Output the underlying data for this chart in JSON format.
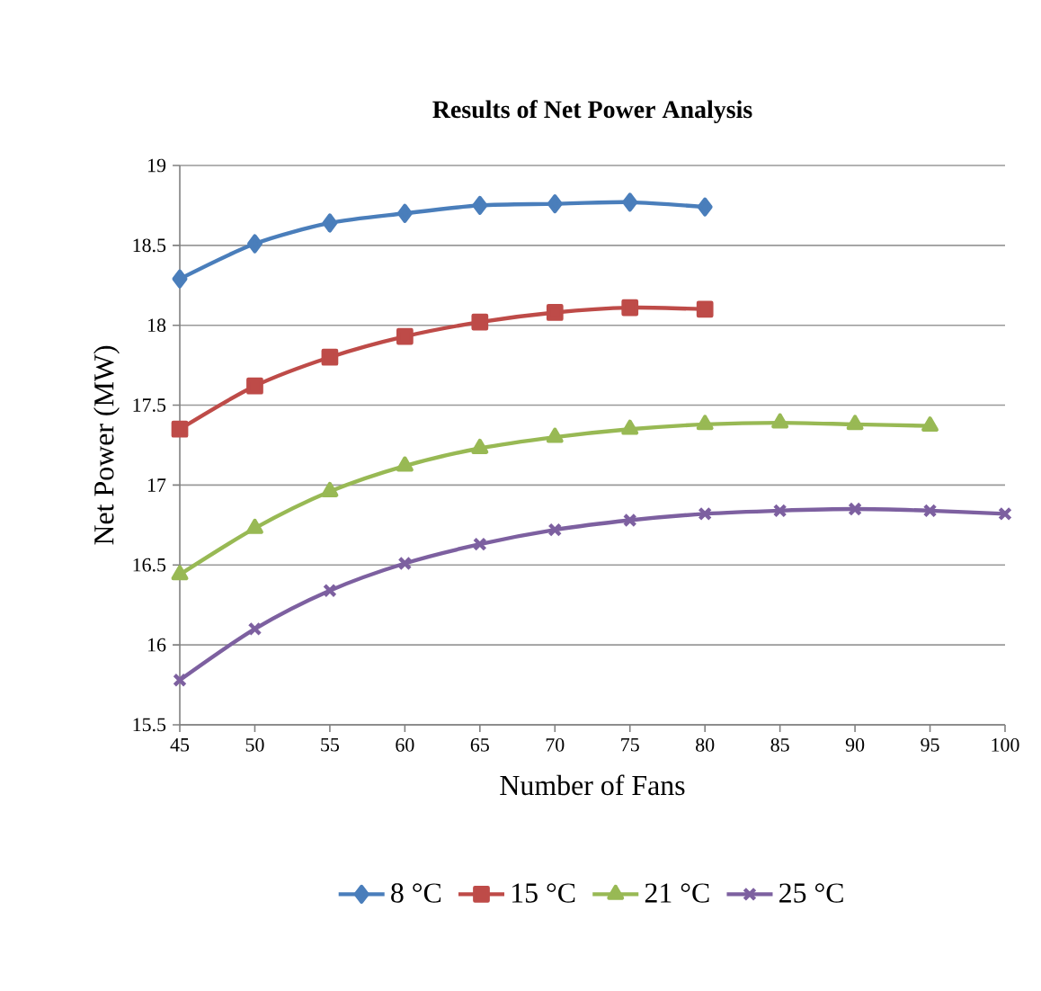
{
  "chart_data": {
    "type": "line",
    "title": "Results of Net Power Analysis",
    "xlabel": "Number of Fans",
    "ylabel": "Net Power (MW)",
    "xlim": [
      45,
      100
    ],
    "xticks": [
      45,
      50,
      55,
      60,
      65,
      70,
      75,
      80,
      85,
      90,
      95,
      100
    ],
    "ylim": [
      15.5,
      19
    ],
    "yticks": [
      15.5,
      16,
      16.5,
      17,
      17.5,
      18,
      18.5,
      19
    ],
    "grid": "y",
    "legend": "bottom",
    "series": [
      {
        "name": "8 °C",
        "color": "#4a7ebb",
        "marker": "diamond",
        "x": [
          45,
          50,
          55,
          60,
          65,
          70,
          75,
          80
        ],
        "values": [
          18.29,
          18.51,
          18.64,
          18.7,
          18.75,
          18.76,
          18.77,
          18.74
        ]
      },
      {
        "name": "15 °C",
        "color": "#be4b48",
        "marker": "square",
        "x": [
          45,
          50,
          55,
          60,
          65,
          70,
          75,
          80
        ],
        "values": [
          17.35,
          17.62,
          17.8,
          17.93,
          18.02,
          18.08,
          18.11,
          18.1
        ]
      },
      {
        "name": "21 °C",
        "color": "#98b954",
        "marker": "triangle",
        "x": [
          45,
          50,
          55,
          60,
          65,
          70,
          75,
          80,
          85,
          90,
          95
        ],
        "values": [
          16.44,
          16.73,
          16.96,
          17.12,
          17.23,
          17.3,
          17.35,
          17.38,
          17.39,
          17.38,
          17.37
        ]
      },
      {
        "name": "25 °C",
        "color": "#7d60a0",
        "marker": "cross",
        "x": [
          45,
          50,
          55,
          60,
          65,
          70,
          75,
          80,
          85,
          90,
          95,
          100
        ],
        "values": [
          15.78,
          16.1,
          16.34,
          16.51,
          16.63,
          16.72,
          16.78,
          16.82,
          16.84,
          16.85,
          16.84,
          16.82
        ]
      }
    ]
  }
}
